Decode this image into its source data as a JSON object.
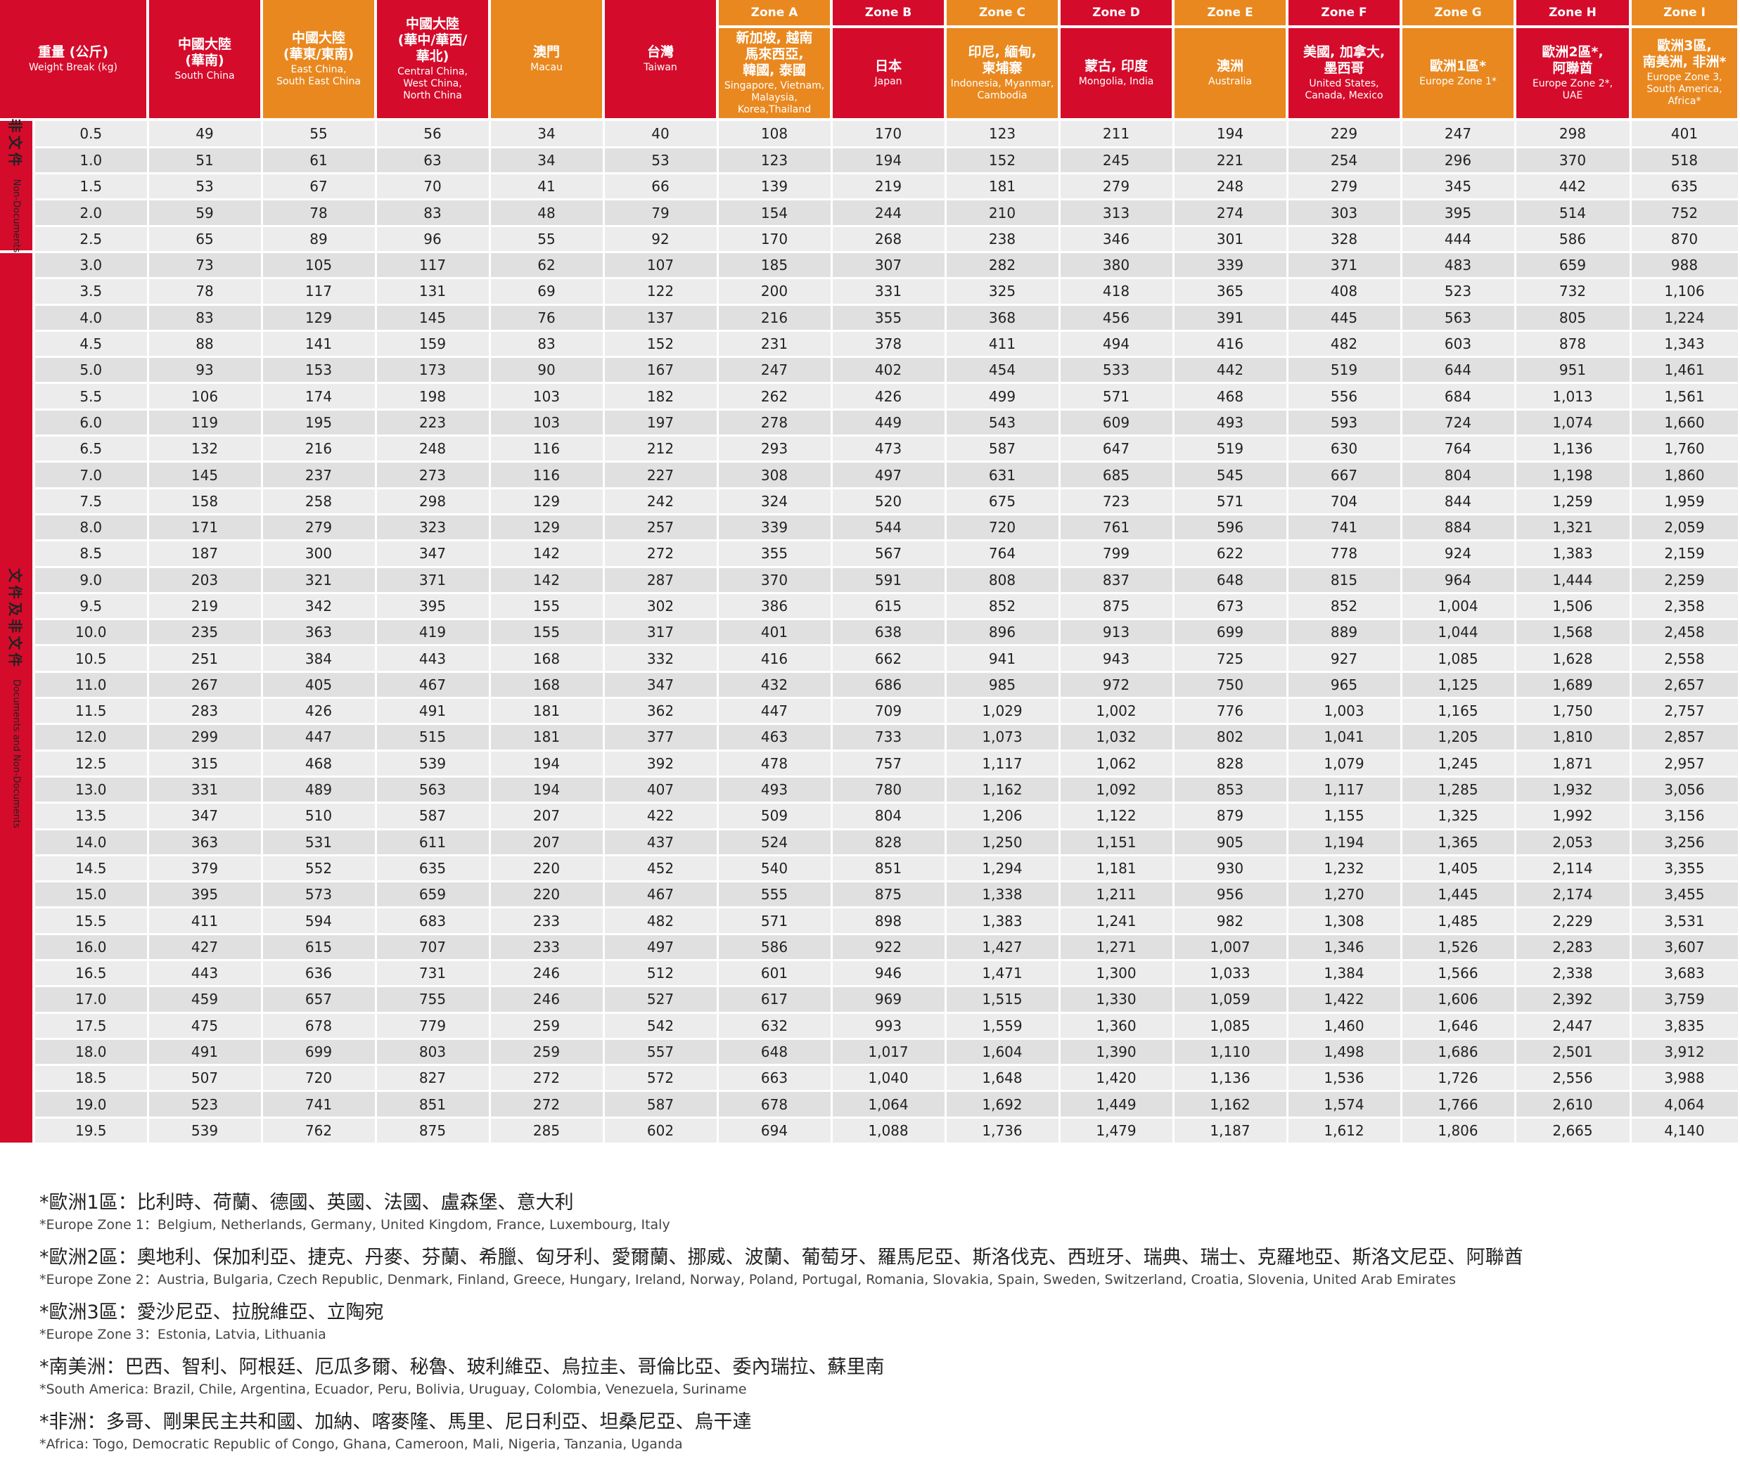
{
  "header": {
    "weight": {
      "zh": "重量 (公斤)",
      "en": "Weight Break (kg)"
    },
    "zones": [
      {
        "id": "south_china",
        "zone_label": "",
        "zh": "中國大陸\n(華南)",
        "en": "South China",
        "color": "#d50b2b"
      },
      {
        "id": "east_china",
        "zone_label": "",
        "zh": "中國大陸\n(華東/東南)",
        "en": "East China,\nSouth East China",
        "color": "#e9881f"
      },
      {
        "id": "central_china",
        "zone_label": "",
        "zh": "中國大陸\n(華中/華西/\n華北)",
        "en": "Central China,\nWest China,\nNorth China",
        "color": "#d50b2b"
      },
      {
        "id": "macau",
        "zone_label": "",
        "zh": "澳門",
        "en": "Macau",
        "color": "#e9881f"
      },
      {
        "id": "taiwan",
        "zone_label": "",
        "zh": "台灣",
        "en": "Taiwan",
        "color": "#d50b2b"
      },
      {
        "id": "zone_a",
        "zone_label": "Zone A",
        "zh": "新加坡, 越南\n馬來西亞,\n韓國, 泰國",
        "en": "Singapore, Vietnam,\nMalaysia,\nKorea,Thailand",
        "color": "#e9881f"
      },
      {
        "id": "zone_b",
        "zone_label": "Zone B",
        "zh": "日本",
        "en": "Japan",
        "color": "#d50b2b"
      },
      {
        "id": "zone_c",
        "zone_label": "Zone C",
        "zh": "印尼, 緬甸,\n柬埔寨",
        "en": "Indonesia, Myanmar,\nCambodia",
        "color": "#e9881f"
      },
      {
        "id": "zone_d",
        "zone_label": "Zone D",
        "zh": "蒙古, 印度",
        "en": "Mongolia, India",
        "color": "#d50b2b"
      },
      {
        "id": "zone_e",
        "zone_label": "Zone E",
        "zh": "澳洲",
        "en": "Australia",
        "color": "#e9881f"
      },
      {
        "id": "zone_f",
        "zone_label": "Zone F",
        "zh": "美國, 加拿大,\n墨西哥",
        "en": "United States,\nCanada, Mexico",
        "color": "#d50b2b"
      },
      {
        "id": "zone_g",
        "zone_label": "Zone G",
        "zh": "歐洲1區*",
        "en": "Europe Zone 1*",
        "color": "#e9881f"
      },
      {
        "id": "zone_h",
        "zone_label": "Zone H",
        "zh": "歐洲2區*,\n阿聯酋",
        "en": "Europe Zone 2*,\nUAE",
        "color": "#d50b2b"
      },
      {
        "id": "zone_i",
        "zone_label": "Zone I",
        "zh": "歐洲3區,\n南美洲, 非洲*",
        "en": "Europe Zone 3,\nSouth America,\nAfrica*",
        "color": "#e9881f"
      }
    ]
  },
  "categories": [
    {
      "zh": "非文件",
      "en": "Non-Documents",
      "rows": 5
    },
    {
      "zh": "文件及非文件",
      "en": "Documents and Non-Documents",
      "rows": 34
    }
  ],
  "rows": [
    [
      "0.5",
      "49",
      "55",
      "56",
      "34",
      "40",
      "108",
      "170",
      "123",
      "211",
      "194",
      "229",
      "247",
      "298",
      "401"
    ],
    [
      "1.0",
      "51",
      "61",
      "63",
      "34",
      "53",
      "123",
      "194",
      "152",
      "245",
      "221",
      "254",
      "296",
      "370",
      "518"
    ],
    [
      "1.5",
      "53",
      "67",
      "70",
      "41",
      "66",
      "139",
      "219",
      "181",
      "279",
      "248",
      "279",
      "345",
      "442",
      "635"
    ],
    [
      "2.0",
      "59",
      "78",
      "83",
      "48",
      "79",
      "154",
      "244",
      "210",
      "313",
      "274",
      "303",
      "395",
      "514",
      "752"
    ],
    [
      "2.5",
      "65",
      "89",
      "96",
      "55",
      "92",
      "170",
      "268",
      "238",
      "346",
      "301",
      "328",
      "444",
      "586",
      "870"
    ],
    [
      "3.0",
      "73",
      "105",
      "117",
      "62",
      "107",
      "185",
      "307",
      "282",
      "380",
      "339",
      "371",
      "483",
      "659",
      "988"
    ],
    [
      "3.5",
      "78",
      "117",
      "131",
      "69",
      "122",
      "200",
      "331",
      "325",
      "418",
      "365",
      "408",
      "523",
      "732",
      "1,106"
    ],
    [
      "4.0",
      "83",
      "129",
      "145",
      "76",
      "137",
      "216",
      "355",
      "368",
      "456",
      "391",
      "445",
      "563",
      "805",
      "1,224"
    ],
    [
      "4.5",
      "88",
      "141",
      "159",
      "83",
      "152",
      "231",
      "378",
      "411",
      "494",
      "416",
      "482",
      "603",
      "878",
      "1,343"
    ],
    [
      "5.0",
      "93",
      "153",
      "173",
      "90",
      "167",
      "247",
      "402",
      "454",
      "533",
      "442",
      "519",
      "644",
      "951",
      "1,461"
    ],
    [
      "5.5",
      "106",
      "174",
      "198",
      "103",
      "182",
      "262",
      "426",
      "499",
      "571",
      "468",
      "556",
      "684",
      "1,013",
      "1,561"
    ],
    [
      "6.0",
      "119",
      "195",
      "223",
      "103",
      "197",
      "278",
      "449",
      "543",
      "609",
      "493",
      "593",
      "724",
      "1,074",
      "1,660"
    ],
    [
      "6.5",
      "132",
      "216",
      "248",
      "116",
      "212",
      "293",
      "473",
      "587",
      "647",
      "519",
      "630",
      "764",
      "1,136",
      "1,760"
    ],
    [
      "7.0",
      "145",
      "237",
      "273",
      "116",
      "227",
      "308",
      "497",
      "631",
      "685",
      "545",
      "667",
      "804",
      "1,198",
      "1,860"
    ],
    [
      "7.5",
      "158",
      "258",
      "298",
      "129",
      "242",
      "324",
      "520",
      "675",
      "723",
      "571",
      "704",
      "844",
      "1,259",
      "1,959"
    ],
    [
      "8.0",
      "171",
      "279",
      "323",
      "129",
      "257",
      "339",
      "544",
      "720",
      "761",
      "596",
      "741",
      "884",
      "1,321",
      "2,059"
    ],
    [
      "8.5",
      "187",
      "300",
      "347",
      "142",
      "272",
      "355",
      "567",
      "764",
      "799",
      "622",
      "778",
      "924",
      "1,383",
      "2,159"
    ],
    [
      "9.0",
      "203",
      "321",
      "371",
      "142",
      "287",
      "370",
      "591",
      "808",
      "837",
      "648",
      "815",
      "964",
      "1,444",
      "2,259"
    ],
    [
      "9.5",
      "219",
      "342",
      "395",
      "155",
      "302",
      "386",
      "615",
      "852",
      "875",
      "673",
      "852",
      "1,004",
      "1,506",
      "2,358"
    ],
    [
      "10.0",
      "235",
      "363",
      "419",
      "155",
      "317",
      "401",
      "638",
      "896",
      "913",
      "699",
      "889",
      "1,044",
      "1,568",
      "2,458"
    ],
    [
      "10.5",
      "251",
      "384",
      "443",
      "168",
      "332",
      "416",
      "662",
      "941",
      "943",
      "725",
      "927",
      "1,085",
      "1,628",
      "2,558"
    ],
    [
      "11.0",
      "267",
      "405",
      "467",
      "168",
      "347",
      "432",
      "686",
      "985",
      "972",
      "750",
      "965",
      "1,125",
      "1,689",
      "2,657"
    ],
    [
      "11.5",
      "283",
      "426",
      "491",
      "181",
      "362",
      "447",
      "709",
      "1,029",
      "1,002",
      "776",
      "1,003",
      "1,165",
      "1,750",
      "2,757"
    ],
    [
      "12.0",
      "299",
      "447",
      "515",
      "181",
      "377",
      "463",
      "733",
      "1,073",
      "1,032",
      "802",
      "1,041",
      "1,205",
      "1,810",
      "2,857"
    ],
    [
      "12.5",
      "315",
      "468",
      "539",
      "194",
      "392",
      "478",
      "757",
      "1,117",
      "1,062",
      "828",
      "1,079",
      "1,245",
      "1,871",
      "2,957"
    ],
    [
      "13.0",
      "331",
      "489",
      "563",
      "194",
      "407",
      "493",
      "780",
      "1,162",
      "1,092",
      "853",
      "1,117",
      "1,285",
      "1,932",
      "3,056"
    ],
    [
      "13.5",
      "347",
      "510",
      "587",
      "207",
      "422",
      "509",
      "804",
      "1,206",
      "1,122",
      "879",
      "1,155",
      "1,325",
      "1,992",
      "3,156"
    ],
    [
      "14.0",
      "363",
      "531",
      "611",
      "207",
      "437",
      "524",
      "828",
      "1,250",
      "1,151",
      "905",
      "1,194",
      "1,365",
      "2,053",
      "3,256"
    ],
    [
      "14.5",
      "379",
      "552",
      "635",
      "220",
      "452",
      "540",
      "851",
      "1,294",
      "1,181",
      "930",
      "1,232",
      "1,405",
      "2,114",
      "3,355"
    ],
    [
      "15.0",
      "395",
      "573",
      "659",
      "220",
      "467",
      "555",
      "875",
      "1,338",
      "1,211",
      "956",
      "1,270",
      "1,445",
      "2,174",
      "3,455"
    ],
    [
      "15.5",
      "411",
      "594",
      "683",
      "233",
      "482",
      "571",
      "898",
      "1,383",
      "1,241",
      "982",
      "1,308",
      "1,485",
      "2,229",
      "3,531"
    ],
    [
      "16.0",
      "427",
      "615",
      "707",
      "233",
      "497",
      "586",
      "922",
      "1,427",
      "1,271",
      "1,007",
      "1,346",
      "1,526",
      "2,283",
      "3,607"
    ],
    [
      "16.5",
      "443",
      "636",
      "731",
      "246",
      "512",
      "601",
      "946",
      "1,471",
      "1,300",
      "1,033",
      "1,384",
      "1,566",
      "2,338",
      "3,683"
    ],
    [
      "17.0",
      "459",
      "657",
      "755",
      "246",
      "527",
      "617",
      "969",
      "1,515",
      "1,330",
      "1,059",
      "1,422",
      "1,606",
      "2,392",
      "3,759"
    ],
    [
      "17.5",
      "475",
      "678",
      "779",
      "259",
      "542",
      "632",
      "993",
      "1,559",
      "1,360",
      "1,085",
      "1,460",
      "1,646",
      "2,447",
      "3,835"
    ],
    [
      "18.0",
      "491",
      "699",
      "803",
      "259",
      "557",
      "648",
      "1,017",
      "1,604",
      "1,390",
      "1,110",
      "1,498",
      "1,686",
      "2,501",
      "3,912"
    ],
    [
      "18.5",
      "507",
      "720",
      "827",
      "272",
      "572",
      "663",
      "1,040",
      "1,648",
      "1,420",
      "1,136",
      "1,536",
      "1,726",
      "2,556",
      "3,988"
    ],
    [
      "19.0",
      "523",
      "741",
      "851",
      "272",
      "587",
      "678",
      "1,064",
      "1,692",
      "1,449",
      "1,162",
      "1,574",
      "1,766",
      "2,610",
      "4,064"
    ],
    [
      "19.5",
      "539",
      "762",
      "875",
      "285",
      "602",
      "694",
      "1,088",
      "1,736",
      "1,479",
      "1,187",
      "1,612",
      "1,806",
      "2,665",
      "4,140"
    ]
  ],
  "footnotes": [
    {
      "zh": "*歐洲1區：比利時、荷蘭、德國、英國、法國、盧森堡、意大利",
      "en": "*Europe Zone 1：Belgium, Netherlands, Germany, United Kingdom, France, Luxembourg, Italy"
    },
    {
      "zh": "*歐洲2區：奧地利、保加利亞、捷克、丹麥、芬蘭、希臘、匈牙利、愛爾蘭、挪威、波蘭、葡萄牙、羅馬尼亞、斯洛伐克、西班牙、瑞典、瑞士、克羅地亞、斯洛文尼亞、阿聯酋",
      "en": "*Europe Zone 2：Austria, Bulgaria, Czech Republic, Denmark, Finland, Greece, Hungary, Ireland, Norway, Poland, Portugal, Romania, Slovakia, Spain, Sweden, Switzerland, Croatia, Slovenia, United Arab Emirates"
    },
    {
      "zh": "*歐洲3區：愛沙尼亞、拉脫維亞、立陶宛",
      "en": "*Europe Zone 3：Estonia, Latvia, Lithuania"
    },
    {
      "zh": "*南美洲：巴西、智利、阿根廷、厄瓜多爾、秘魯、玻利維亞、烏拉圭、哥倫比亞、委內瑞拉、蘇里南",
      "en": "*South America: Brazil, Chile, Argentina, Ecuador, Peru, Bolivia, Uruguay, Colombia, Venezuela, Suriname"
    },
    {
      "zh": "*非洲：多哥、剛果民主共和國、加納、喀麥隆、馬里、尼日利亞、坦桑尼亞、烏干達",
      "en": "*Africa: Togo, Democratic Republic of Congo, Ghana, Cameroon, Mali, Nigeria, Tanzania, Uganda"
    }
  ],
  "colors": {
    "red": "#d50b2b",
    "orange": "#e9881f",
    "row_light": "#ececec",
    "row_dark": "#e0e0e0"
  }
}
